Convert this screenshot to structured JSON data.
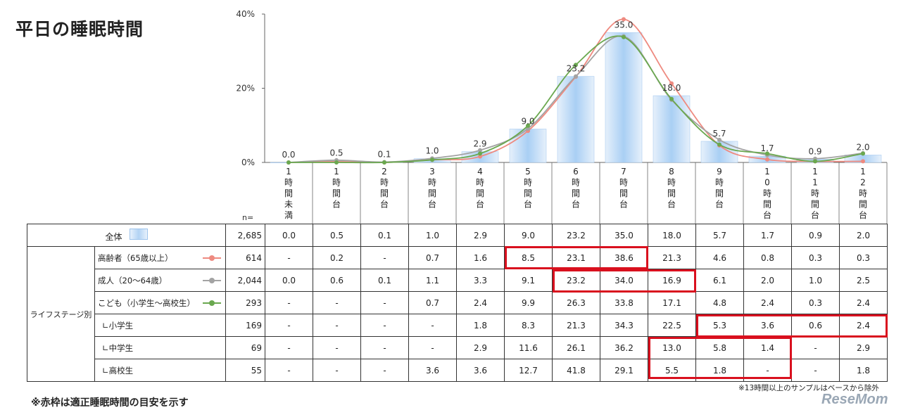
{
  "page": {
    "title": "平日の睡眠時間"
  },
  "chart_data": {
    "type": "bar",
    "title": "平日の睡眠時間",
    "categories": [
      "1時間未満",
      "1時間台",
      "2時間台",
      "3時間台",
      "4時間台",
      "5時間台",
      "6時間台",
      "7時間台",
      "8時間台",
      "9時間台",
      "10時間台",
      "11時間台",
      "12時間台"
    ],
    "category_labels": [
      [
        "1",
        "時",
        "間",
        "未",
        "満"
      ],
      [
        "1",
        "時",
        "間",
        "台"
      ],
      [
        "2",
        "時",
        "間",
        "台"
      ],
      [
        "3",
        "時",
        "間",
        "台"
      ],
      [
        "4",
        "時",
        "間",
        "台"
      ],
      [
        "5",
        "時",
        "間",
        "台"
      ],
      [
        "6",
        "時",
        "間",
        "台"
      ],
      [
        "7",
        "時",
        "間",
        "台"
      ],
      [
        "8",
        "時",
        "間",
        "台"
      ],
      [
        "9",
        "時",
        "間",
        "台"
      ],
      [
        "1",
        "0",
        "時",
        "間",
        "台"
      ],
      [
        "1",
        "1",
        "時",
        "間",
        "台"
      ],
      [
        "1",
        "2",
        "時",
        "間",
        "台"
      ]
    ],
    "y_ticks": [
      "0%",
      "20%",
      "40%"
    ],
    "ylim": [
      0,
      40
    ],
    "n_label": "n=",
    "bar_series": {
      "name": "全体",
      "color": "#a8cdf2",
      "values": [
        0.0,
        0.5,
        0.1,
        1.0,
        2.9,
        9.0,
        23.2,
        35.0,
        18.0,
        5.7,
        1.7,
        0.9,
        2.0
      ],
      "value_labels": [
        "0.0",
        "0.5",
        "0.1",
        "1.0",
        "2.9",
        "9.0",
        "23.2",
        "35.0",
        "18.0",
        "5.7",
        "1.7",
        "0.9",
        "2.0"
      ]
    },
    "line_series": [
      {
        "name": "高齢者（65歳以上）",
        "color": "#ee8a80",
        "values": [
          0,
          0.2,
          0,
          0.7,
          1.6,
          8.5,
          23.1,
          38.6,
          21.3,
          4.6,
          0.8,
          0.3,
          0.3
        ]
      },
      {
        "name": "成人（20～64歳）",
        "color": "#a3a3a3",
        "values": [
          0.0,
          0.6,
          0.1,
          1.1,
          3.3,
          9.1,
          23.2,
          34.0,
          16.9,
          6.1,
          2.0,
          1.0,
          2.5
        ]
      },
      {
        "name": "こども（小学生～高校生）",
        "color": "#6aa84f",
        "values": [
          0,
          0,
          0,
          0.7,
          2.4,
          9.9,
          26.3,
          33.8,
          17.1,
          4.8,
          2.4,
          0.3,
          2.4
        ]
      }
    ],
    "grid": false,
    "legend": "table-left"
  },
  "table": {
    "group_label": "ライフステージ別",
    "total_row": {
      "label": "全体",
      "n": "2,685",
      "values": [
        "0.0",
        "0.5",
        "0.1",
        "1.0",
        "2.9",
        "9.0",
        "23.2",
        "35.0",
        "18.0",
        "5.7",
        "1.7",
        "0.9",
        "2.0"
      ]
    },
    "rows": [
      {
        "label": "高齢者（65歳以上）",
        "legend": "line-pink",
        "n": "614",
        "values": [
          "-",
          "0.2",
          "-",
          "0.7",
          "1.6",
          "8.5",
          "23.1",
          "38.6",
          "21.3",
          "4.6",
          "0.8",
          "0.3",
          "0.3"
        ]
      },
      {
        "label": "成人（20～64歳）",
        "legend": "line-gray",
        "n": "2,044",
        "values": [
          "0.0",
          "0.6",
          "0.1",
          "1.1",
          "3.3",
          "9.1",
          "23.2",
          "34.0",
          "16.9",
          "6.1",
          "2.0",
          "1.0",
          "2.5"
        ]
      },
      {
        "label": "こども（小学生～高校生）",
        "legend": "line-green",
        "n": "293",
        "values": [
          "-",
          "-",
          "-",
          "0.7",
          "2.4",
          "9.9",
          "26.3",
          "33.8",
          "17.1",
          "4.8",
          "2.4",
          "0.3",
          "2.4"
        ]
      },
      {
        "label": "∟小学生",
        "legend": "",
        "n": "169",
        "values": [
          "-",
          "-",
          "-",
          "-",
          "1.8",
          "8.3",
          "21.3",
          "34.3",
          "22.5",
          "5.3",
          "3.6",
          "0.6",
          "2.4"
        ]
      },
      {
        "label": "∟中学生",
        "legend": "",
        "n": "69",
        "values": [
          "-",
          "-",
          "-",
          "-",
          "2.9",
          "11.6",
          "26.1",
          "36.2",
          "13.0",
          "5.8",
          "1.4",
          "-",
          "2.9"
        ]
      },
      {
        "label": "∟高校生",
        "legend": "",
        "n": "55",
        "values": [
          "-",
          "-",
          "-",
          "3.6",
          "3.6",
          "12.7",
          "41.8",
          "29.1",
          "5.5",
          "1.8",
          "-",
          "-",
          "1.8"
        ]
      }
    ],
    "highlight_color": "#d9101e"
  },
  "footnotes": {
    "left": "※赤枠は適正睡眠時間の目安を示す",
    "right": "※13時間以上のサンプルはベースから除外"
  },
  "logo": {
    "text": "ReseMom"
  }
}
